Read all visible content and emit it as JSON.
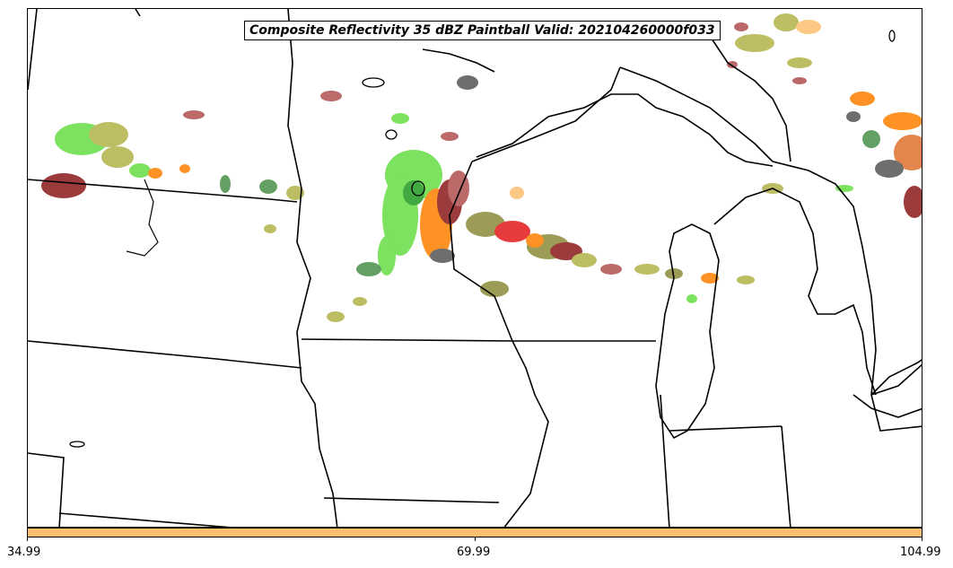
{
  "title": "Composite Reflectivity 35 dBZ Paintball Valid: 202104260000f033",
  "colorbar": {
    "color": "#fdbf6f",
    "ticks": [
      "34.99",
      "69.99",
      "104.99"
    ]
  },
  "member_colors": [
    "#fdbf6f",
    "#ff7f00",
    "#e31a1c",
    "#33a02c",
    "#66cc33",
    "#b2b24a",
    "#8b8b3a",
    "#8b1a1a",
    "#b05050",
    "#555555",
    "#4a8f4a",
    "#e07030"
  ]
}
